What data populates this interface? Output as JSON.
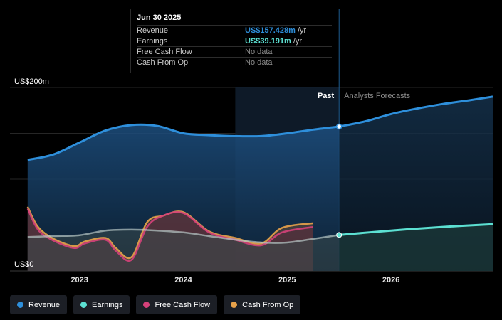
{
  "chart_data": {
    "type": "area",
    "y_axis": {
      "top_label": "US$200m",
      "bottom_label": "US$0",
      "ylim": [
        0,
        200
      ]
    },
    "x_ticks": [
      {
        "label": "2023",
        "x": 2023.0
      },
      {
        "label": "2024",
        "x": 2024.0
      },
      {
        "label": "2025",
        "x": 2025.0
      },
      {
        "label": "2026",
        "x": 2026.0
      }
    ],
    "xlim": [
      2022.33,
      2026.98
    ],
    "past_label": "Past",
    "forecast_label": "Analysts Forecasts",
    "divider_x": 2025.5,
    "highlight_start_x": 2024.5,
    "series": [
      {
        "name": "Revenue",
        "color": "#2e8fdb",
        "x": [
          2022.5,
          2022.75,
          2023.0,
          2023.25,
          2023.5,
          2023.75,
          2024.0,
          2024.25,
          2024.5,
          2024.75,
          2025.0,
          2025.25,
          2025.5
        ],
        "values": [
          121,
          127,
          140,
          153,
          159,
          158,
          150,
          148,
          147,
          147,
          150,
          154,
          157.4
        ]
      },
      {
        "name": "Earnings",
        "color": "#5ce0d2",
        "x": [
          2022.5,
          2022.75,
          2023.0,
          2023.25,
          2023.5,
          2023.75,
          2024.0,
          2024.25,
          2024.5,
          2024.75,
          2025.0,
          2025.25,
          2025.5
        ],
        "values": [
          37,
          38,
          39,
          44,
          45,
          44,
          42,
          38,
          34,
          31,
          31,
          35,
          39.2
        ]
      },
      {
        "name": "Free Cash Flow",
        "color": "#d6417a",
        "x": [
          2022.5,
          2022.6,
          2022.75,
          2022.95,
          2023.05,
          2023.25,
          2023.35,
          2023.5,
          2023.65,
          2023.8,
          2024.0,
          2024.25,
          2024.5,
          2024.75,
          2024.95,
          2025.25
        ],
        "values": [
          68,
          45,
          33,
          25,
          30,
          34,
          22,
          12,
          48,
          60,
          63,
          42,
          34,
          28,
          42,
          48
        ]
      },
      {
        "name": "Cash From Op",
        "color": "#e8a24a",
        "x": [
          2022.5,
          2022.6,
          2022.75,
          2022.95,
          2023.05,
          2023.25,
          2023.35,
          2023.5,
          2023.65,
          2023.8,
          2024.0,
          2024.25,
          2024.5,
          2024.75,
          2024.95,
          2025.25
        ],
        "values": [
          70,
          48,
          35,
          27,
          32,
          36,
          25,
          15,
          53,
          60,
          64,
          43,
          36,
          30,
          47,
          52
        ]
      }
    ],
    "forecast_series": [
      {
        "name": "Revenue",
        "color": "#2e8fdb",
        "x": [
          2025.5,
          2025.75,
          2026.0,
          2026.25,
          2026.5,
          2026.75,
          2026.98
        ],
        "values": [
          157.4,
          163,
          171,
          177,
          182,
          186,
          190
        ]
      },
      {
        "name": "Earnings",
        "color": "#5ce0d2",
        "x": [
          2025.5,
          2026.0,
          2026.5,
          2026.98
        ],
        "values": [
          39.2,
          44,
          48,
          51
        ]
      }
    ]
  },
  "tooltip": {
    "date": "Jun 30 2025",
    "rows": [
      {
        "label": "Revenue",
        "value": "US$157.428m",
        "unit": "/yr",
        "color": "#2e8fdb"
      },
      {
        "label": "Earnings",
        "value": "US$39.191m",
        "unit": "/yr",
        "color": "#5ce0d2"
      },
      {
        "label": "Free Cash Flow",
        "value": "No data",
        "unit": "",
        "color": ""
      },
      {
        "label": "Cash From Op",
        "value": "No data",
        "unit": "",
        "color": ""
      }
    ]
  },
  "legend": [
    {
      "label": "Revenue",
      "color": "#2e8fdb"
    },
    {
      "label": "Earnings",
      "color": "#5ce0d2"
    },
    {
      "label": "Free Cash Flow",
      "color": "#d6417a"
    },
    {
      "label": "Cash From Op",
      "color": "#e8a24a"
    }
  ]
}
